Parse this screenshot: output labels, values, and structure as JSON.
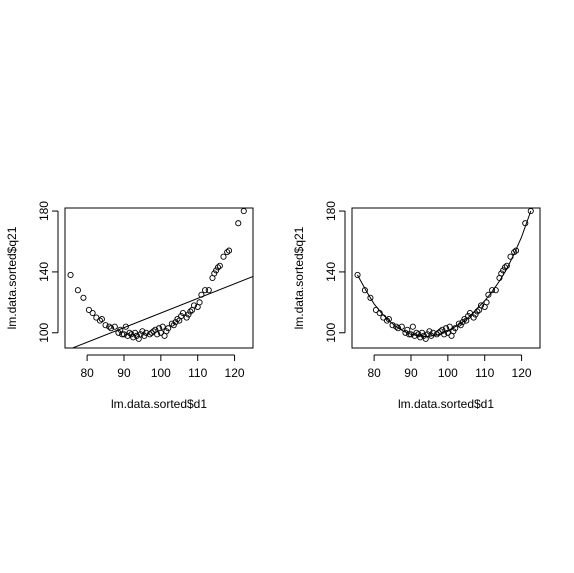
{
  "chart_data": [
    {
      "type": "scatter",
      "title": "",
      "xlabel": "lm.data.sorted$d1",
      "ylabel": "lm.data.sorted$q21",
      "xlim": [
        74,
        125
      ],
      "ylim": [
        90,
        182
      ],
      "xticks": [
        80,
        90,
        100,
        110,
        120
      ],
      "yticks": [
        100,
        140,
        180
      ],
      "grid": false,
      "points": [
        [
          75.5,
          138
        ],
        [
          77.5,
          128
        ],
        [
          79,
          123
        ],
        [
          80.5,
          115
        ],
        [
          81.5,
          113
        ],
        [
          82.5,
          110
        ],
        [
          83.5,
          108
        ],
        [
          84,
          109
        ],
        [
          85,
          105
        ],
        [
          86,
          104
        ],
        [
          86.5,
          103
        ],
        [
          87.5,
          104
        ],
        [
          88.5,
          100
        ],
        [
          89,
          102
        ],
        [
          89.5,
          99
        ],
        [
          90,
          99
        ],
        [
          90.5,
          104
        ],
        [
          91,
          98
        ],
        [
          91.5,
          100
        ],
        [
          92,
          99
        ],
        [
          92.5,
          97
        ],
        [
          93,
          100
        ],
        [
          93.5,
          98
        ],
        [
          94,
          96
        ],
        [
          94.5,
          99
        ],
        [
          95,
          101
        ],
        [
          95.5,
          98
        ],
        [
          96,
          100
        ],
        [
          97,
          99
        ],
        [
          97.5,
          100
        ],
        [
          98,
          101
        ],
        [
          98.5,
          102
        ],
        [
          99,
          99
        ],
        [
          99.5,
          103
        ],
        [
          100,
          100
        ],
        [
          100.5,
          104
        ],
        [
          101,
          98
        ],
        [
          101.5,
          101
        ],
        [
          102,
          103
        ],
        [
          103,
          106
        ],
        [
          103.5,
          105
        ],
        [
          104,
          107
        ],
        [
          104.5,
          109
        ],
        [
          105,
          108
        ],
        [
          105.5,
          111
        ],
        [
          106,
          113
        ],
        [
          107,
          110
        ],
        [
          107.5,
          112
        ],
        [
          108,
          114
        ],
        [
          108.5,
          115
        ],
        [
          109,
          118
        ],
        [
          110,
          117
        ],
        [
          110.5,
          120
        ],
        [
          111,
          125
        ],
        [
          112,
          128
        ],
        [
          113,
          128
        ],
        [
          114,
          136
        ],
        [
          114.5,
          139
        ],
        [
          115,
          141
        ],
        [
          115.5,
          143
        ],
        [
          116,
          144
        ],
        [
          117,
          150
        ],
        [
          118,
          153
        ],
        [
          118.5,
          154
        ],
        [
          121,
          172
        ],
        [
          122.5,
          180
        ]
      ],
      "fit": {
        "type": "linear",
        "x": [
          74,
          125
        ],
        "y": [
          88,
          137
        ]
      }
    },
    {
      "type": "scatter",
      "title": "",
      "xlabel": "lm.data.sorted$d1",
      "ylabel": "lm.data.sorted$q21",
      "xlim": [
        74,
        125
      ],
      "ylim": [
        90,
        182
      ],
      "xticks": [
        80,
        90,
        100,
        110,
        120
      ],
      "yticks": [
        100,
        140,
        180
      ],
      "grid": false,
      "points": [
        [
          75.5,
          138
        ],
        [
          77.5,
          128
        ],
        [
          79,
          123
        ],
        [
          80.5,
          115
        ],
        [
          81.5,
          113
        ],
        [
          82.5,
          110
        ],
        [
          83.5,
          108
        ],
        [
          84,
          109
        ],
        [
          85,
          105
        ],
        [
          86,
          104
        ],
        [
          86.5,
          103
        ],
        [
          87.5,
          104
        ],
        [
          88.5,
          100
        ],
        [
          89,
          102
        ],
        [
          89.5,
          99
        ],
        [
          90,
          99
        ],
        [
          90.5,
          104
        ],
        [
          91,
          98
        ],
        [
          91.5,
          100
        ],
        [
          92,
          99
        ],
        [
          92.5,
          97
        ],
        [
          93,
          100
        ],
        [
          93.5,
          98
        ],
        [
          94,
          96
        ],
        [
          94.5,
          99
        ],
        [
          95,
          101
        ],
        [
          95.5,
          98
        ],
        [
          96,
          100
        ],
        [
          97,
          99
        ],
        [
          97.5,
          100
        ],
        [
          98,
          101
        ],
        [
          98.5,
          102
        ],
        [
          99,
          99
        ],
        [
          99.5,
          103
        ],
        [
          100,
          100
        ],
        [
          100.5,
          104
        ],
        [
          101,
          98
        ],
        [
          101.5,
          101
        ],
        [
          102,
          103
        ],
        [
          103,
          106
        ],
        [
          103.5,
          105
        ],
        [
          104,
          107
        ],
        [
          104.5,
          109
        ],
        [
          105,
          108
        ],
        [
          105.5,
          111
        ],
        [
          106,
          113
        ],
        [
          107,
          110
        ],
        [
          107.5,
          112
        ],
        [
          108,
          114
        ],
        [
          108.5,
          115
        ],
        [
          109,
          118
        ],
        [
          110,
          117
        ],
        [
          110.5,
          120
        ],
        [
          111,
          125
        ],
        [
          112,
          128
        ],
        [
          113,
          128
        ],
        [
          114,
          136
        ],
        [
          114.5,
          139
        ],
        [
          115,
          141
        ],
        [
          115.5,
          143
        ],
        [
          116,
          144
        ],
        [
          117,
          150
        ],
        [
          118,
          153
        ],
        [
          118.5,
          154
        ],
        [
          121,
          172
        ],
        [
          122.5,
          180
        ]
      ],
      "fit": {
        "type": "curve",
        "x": [
          75.5,
          78,
          80,
          82,
          84,
          86,
          88,
          90,
          92,
          94,
          96,
          98,
          100,
          102,
          104,
          106,
          108,
          110,
          112,
          114,
          116,
          118,
          120,
          122.5
        ],
        "y": [
          138,
          127,
          119,
          113,
          108,
          104,
          101,
          99,
          98,
          97.5,
          98,
          99,
          101,
          104,
          107,
          111,
          116,
          121,
          127,
          134,
          142,
          152,
          163,
          180
        ]
      }
    }
  ]
}
